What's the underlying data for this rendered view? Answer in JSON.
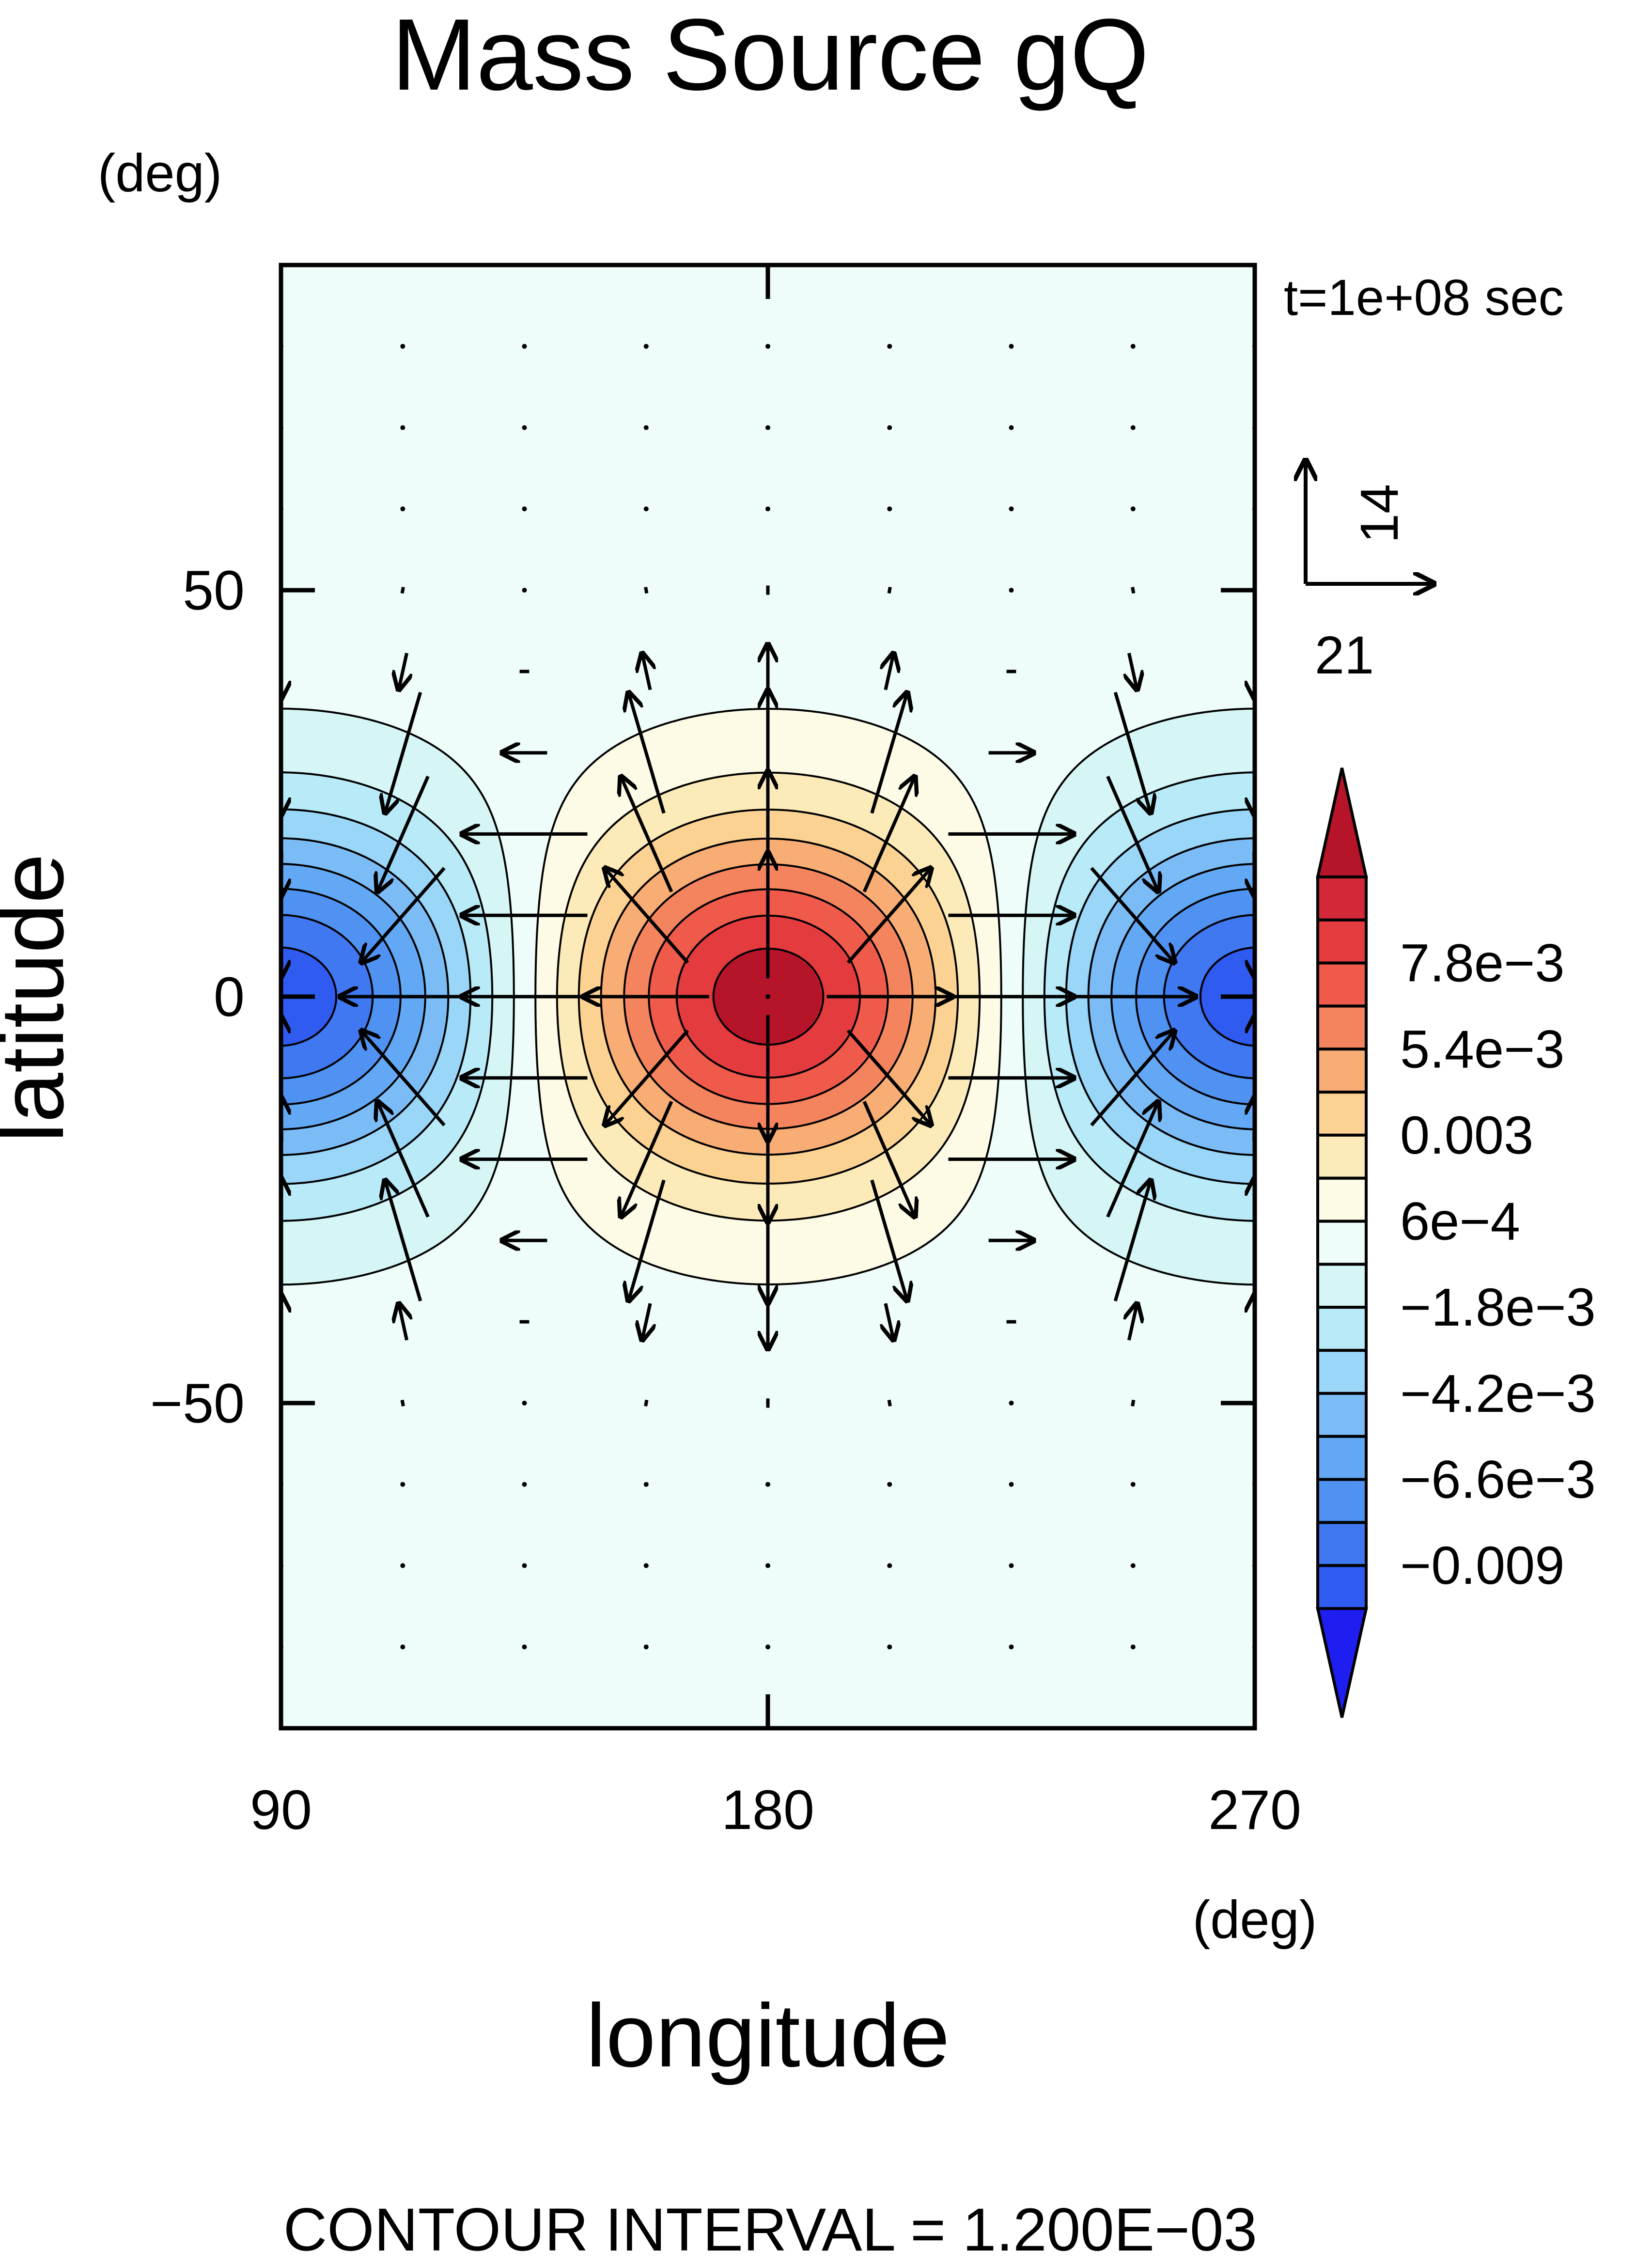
{
  "chart_data": {
    "type": "heatmap",
    "title": "Mass Source gQ",
    "y_unit": "(deg)",
    "x_unit": "(deg)",
    "xlabel": "longitude",
    "ylabel": "latitude",
    "time_label": "t=1e+08 sec",
    "footer": "CONTOUR INTERVAL = 1.200E−03",
    "xlim": [
      90,
      270
    ],
    "ylim": [
      -90,
      90
    ],
    "x_ticks": [
      90,
      180,
      270
    ],
    "x_tick_labels": [
      "90",
      "180",
      "270"
    ],
    "y_ticks": [
      50,
      0,
      -50
    ],
    "y_tick_labels": [
      "50",
      "0",
      "−50"
    ],
    "contour_interval": 0.0012,
    "grid": false,
    "field": {
      "description_kind": "gaussian",
      "centers": [
        {
          "lon": 180,
          "lat": 0,
          "amplitude": 0.0098
        },
        {
          "lon": 90,
          "lat": 0,
          "amplitude": -0.0098
        },
        {
          "lon": 270,
          "lat": 0,
          "amplitude": -0.0098
        }
      ]
    },
    "colorbar": {
      "levels": [
        -0.0102,
        -0.009,
        -0.0078,
        -0.0066,
        -0.0054,
        -0.0042,
        -0.003,
        -0.0018,
        -0.0006,
        0.0006,
        0.0018,
        0.003,
        0.0042,
        0.0054,
        0.0066,
        0.0078,
        0.009
      ],
      "colors": [
        "#1e1ef0",
        "#2f5bf0",
        "#3f78f0",
        "#4f92f2",
        "#62a8f4",
        "#7cbcf6",
        "#99d6f8",
        "#b8eaf8",
        "#d6f6f6",
        "#eefcfa",
        "#fdfbe6",
        "#fcebb8",
        "#fbd292",
        "#f7ad74",
        "#f4845e",
        "#ef5a4a",
        "#e43b3e",
        "#d22838",
        "#b51429"
      ],
      "tick_labels": [
        {
          "level": 0.0078,
          "label": "7.8e−3"
        },
        {
          "level": 0.0054,
          "label": "5.4e−3"
        },
        {
          "level": 0.003,
          "label": "0.003"
        },
        {
          "level": 0.0006,
          "label": "6e−4"
        },
        {
          "level": -0.0018,
          "label": "−1.8e−3"
        },
        {
          "level": -0.0042,
          "label": "−4.2e−3"
        },
        {
          "level": -0.0066,
          "label": "−6.6e−3"
        },
        {
          "level": -0.009,
          "label": "−0.009"
        }
      ]
    },
    "vector_reference": {
      "u_label": "21",
      "v_label": "14",
      "u_value": 21,
      "v_value": 14
    },
    "vectors": {
      "lon": [
        90,
        112.5,
        135,
        157.5,
        180,
        202.5,
        225,
        247.5,
        270
      ],
      "lat": [
        80,
        70,
        60,
        50,
        40,
        30,
        20,
        10,
        0,
        -10,
        -20,
        -30,
        -40,
        -50,
        -60,
        -70,
        -80
      ],
      "note": "wind field diverging from the positive mass source and converging into the negative sinks"
    }
  }
}
